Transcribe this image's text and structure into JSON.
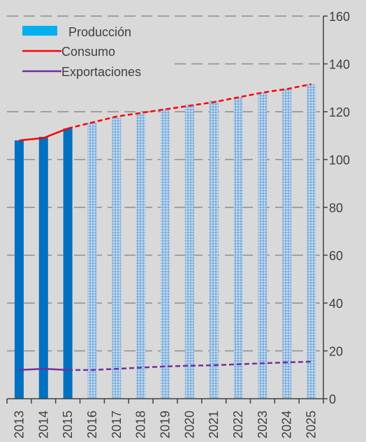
{
  "chart_data": {
    "type": "bar",
    "categories": [
      "2013",
      "2014",
      "2015",
      "2016",
      "2017",
      "2018",
      "2019",
      "2020",
      "2021",
      "2022",
      "2023",
      "2024",
      "2025"
    ],
    "series": [
      {
        "name": "Producción",
        "kind": "bar",
        "color": "#0070c0",
        "projected_color": "#9dc3e6",
        "values": [
          108,
          109.5,
          113,
          115.5,
          117.5,
          119.5,
          121,
          123,
          124.5,
          126,
          128,
          129.5,
          131.5
        ]
      },
      {
        "name": "Consumo",
        "kind": "line",
        "color": "#ff0000",
        "values": [
          108,
          109,
          113,
          115.5,
          118,
          119.5,
          121,
          122.5,
          124,
          126,
          128,
          129.5,
          131.5
        ]
      },
      {
        "name": "Exportaciones",
        "kind": "line",
        "color": "#7030a0",
        "values": [
          12,
          12.5,
          12,
          12,
          12.5,
          13,
          13.5,
          13.8,
          14,
          14.4,
          14.8,
          15.2,
          15.5
        ]
      }
    ],
    "projection_start_index": 3,
    "ylim": [
      0,
      160
    ],
    "yticks": [
      "0",
      "20",
      "40",
      "60",
      "80",
      "100",
      "120",
      "140",
      "160"
    ],
    "y_axis_position": "right",
    "grid": "dashed horizontal",
    "legend_position": "top-left",
    "title": "",
    "xlabel": "",
    "ylabel": ""
  }
}
